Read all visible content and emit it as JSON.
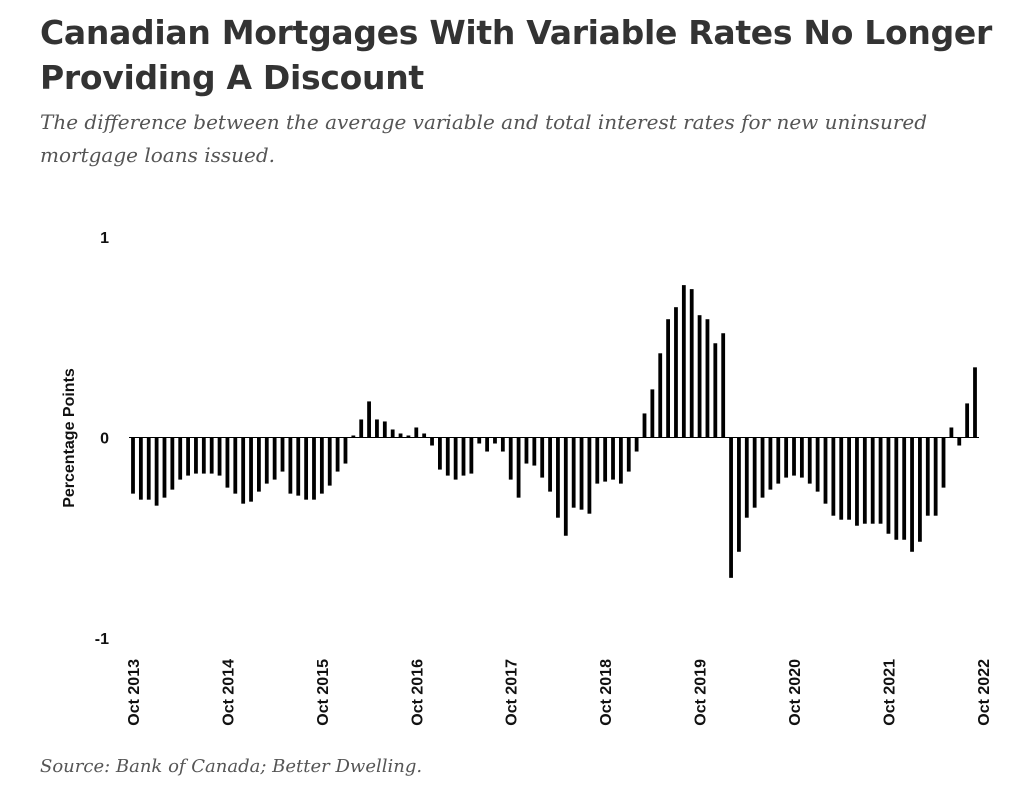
{
  "header": {
    "title": "Canadian Mortgages With Variable Rates No Longer Providing A Discount",
    "subtitle": "The difference between the average variable and total interest rates for new uninsured mortgage loans issued."
  },
  "footer": {
    "source": "Source: Bank of Canada; Better Dwelling."
  },
  "colors": {
    "bar": "#000000",
    "text": "#333333"
  },
  "chart_data": {
    "type": "bar",
    "title": "",
    "xlabel": "",
    "ylabel": "Percentage Points",
    "ylim": [
      -1,
      1
    ],
    "yticks": [
      1,
      0,
      -1
    ],
    "grid": false,
    "x_tick_labels": [
      {
        "index": 0,
        "label": "Oct 2013"
      },
      {
        "index": 12,
        "label": "Oct 2014"
      },
      {
        "index": 24,
        "label": "Oct 2015"
      },
      {
        "index": 36,
        "label": "Oct 2016"
      },
      {
        "index": 48,
        "label": "Oct 2017"
      },
      {
        "index": 60,
        "label": "Oct 2018"
      },
      {
        "index": 72,
        "label": "Oct 2019"
      },
      {
        "index": 84,
        "label": "Oct 2020"
      },
      {
        "index": 96,
        "label": "Oct 2021"
      },
      {
        "index": 108,
        "label": "Oct 2022"
      }
    ],
    "values": [
      -0.28,
      -0.31,
      -0.31,
      -0.34,
      -0.3,
      -0.26,
      -0.21,
      -0.19,
      -0.18,
      -0.18,
      -0.18,
      -0.19,
      -0.25,
      -0.28,
      -0.33,
      -0.32,
      -0.27,
      -0.23,
      -0.21,
      -0.17,
      -0.28,
      -0.29,
      -0.31,
      -0.31,
      -0.28,
      -0.24,
      -0.17,
      -0.13,
      0.01,
      0.09,
      0.18,
      0.09,
      0.08,
      0.04,
      0.02,
      0.01,
      0.05,
      0.02,
      -0.04,
      -0.16,
      -0.19,
      -0.21,
      -0.19,
      -0.18,
      -0.03,
      -0.07,
      -0.03,
      -0.07,
      -0.21,
      -0.3,
      -0.13,
      -0.14,
      -0.2,
      -0.27,
      -0.4,
      -0.49,
      -0.35,
      -0.36,
      -0.38,
      -0.23,
      -0.22,
      -0.21,
      -0.23,
      -0.17,
      -0.07,
      0.12,
      0.24,
      0.42,
      0.59,
      0.65,
      0.76,
      0.74,
      0.61,
      0.59,
      0.47,
      0.52,
      -0.7,
      -0.57,
      -0.4,
      -0.35,
      -0.3,
      -0.26,
      -0.23,
      -0.2,
      -0.19,
      -0.2,
      -0.23,
      -0.27,
      -0.33,
      -0.39,
      -0.41,
      -0.41,
      -0.44,
      -0.43,
      -0.43,
      -0.43,
      -0.48,
      -0.51,
      -0.51,
      -0.57,
      -0.52,
      -0.39,
      -0.39,
      -0.25,
      0.05,
      -0.04,
      0.17,
      0.35
    ]
  }
}
